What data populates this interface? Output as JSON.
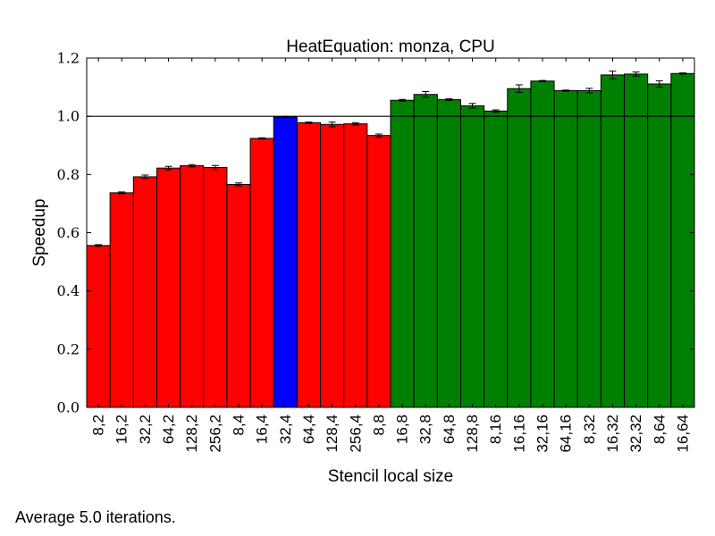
{
  "chart_data": {
    "type": "bar",
    "title": "HeatEquation: monza, CPU",
    "xlabel": "Stencil local size",
    "ylabel": "Speedup",
    "ylim": [
      0.0,
      1.2
    ],
    "yticks": [
      "0.0",
      "0.2",
      "0.4",
      "0.6",
      "0.8",
      "1.0",
      "1.2"
    ],
    "reference_line": 1.0,
    "grid": false,
    "categories": [
      "8,2",
      "16,2",
      "32,2",
      "64,2",
      "128,2",
      "256,2",
      "8,4",
      "16,4",
      "32,4",
      "64,4",
      "128,4",
      "256,4",
      "8,8",
      "16,8",
      "32,8",
      "64,8",
      "128,8",
      "8,16",
      "16,16",
      "32,16",
      "64,16",
      "8,32",
      "16,32",
      "32,32",
      "8,64",
      "16,64"
    ],
    "values": [
      0.556,
      0.737,
      0.792,
      0.822,
      0.83,
      0.824,
      0.766,
      0.924,
      0.998,
      0.978,
      0.972,
      0.974,
      0.934,
      1.055,
      1.075,
      1.057,
      1.036,
      1.018,
      1.095,
      1.121,
      1.088,
      1.088,
      1.142,
      1.145,
      1.111,
      1.147
    ],
    "errors": [
      0.003,
      0.003,
      0.006,
      0.006,
      0.004,
      0.007,
      0.005,
      0.002,
      0.002,
      0.002,
      0.008,
      0.004,
      0.005,
      0.003,
      0.01,
      0.003,
      0.008,
      0.004,
      0.013,
      0.002,
      0.002,
      0.008,
      0.013,
      0.007,
      0.011,
      0.002
    ],
    "colors": [
      "#ff0000",
      "#ff0000",
      "#ff0000",
      "#ff0000",
      "#ff0000",
      "#ff0000",
      "#ff0000",
      "#ff0000",
      "#0000ff",
      "#ff0000",
      "#ff0000",
      "#ff0000",
      "#ff0000",
      "#008000",
      "#008000",
      "#008000",
      "#008000",
      "#008000",
      "#008000",
      "#008000",
      "#008000",
      "#008000",
      "#008000",
      "#008000",
      "#008000",
      "#008000"
    ]
  },
  "footnote": "Average 5.0 iterations."
}
